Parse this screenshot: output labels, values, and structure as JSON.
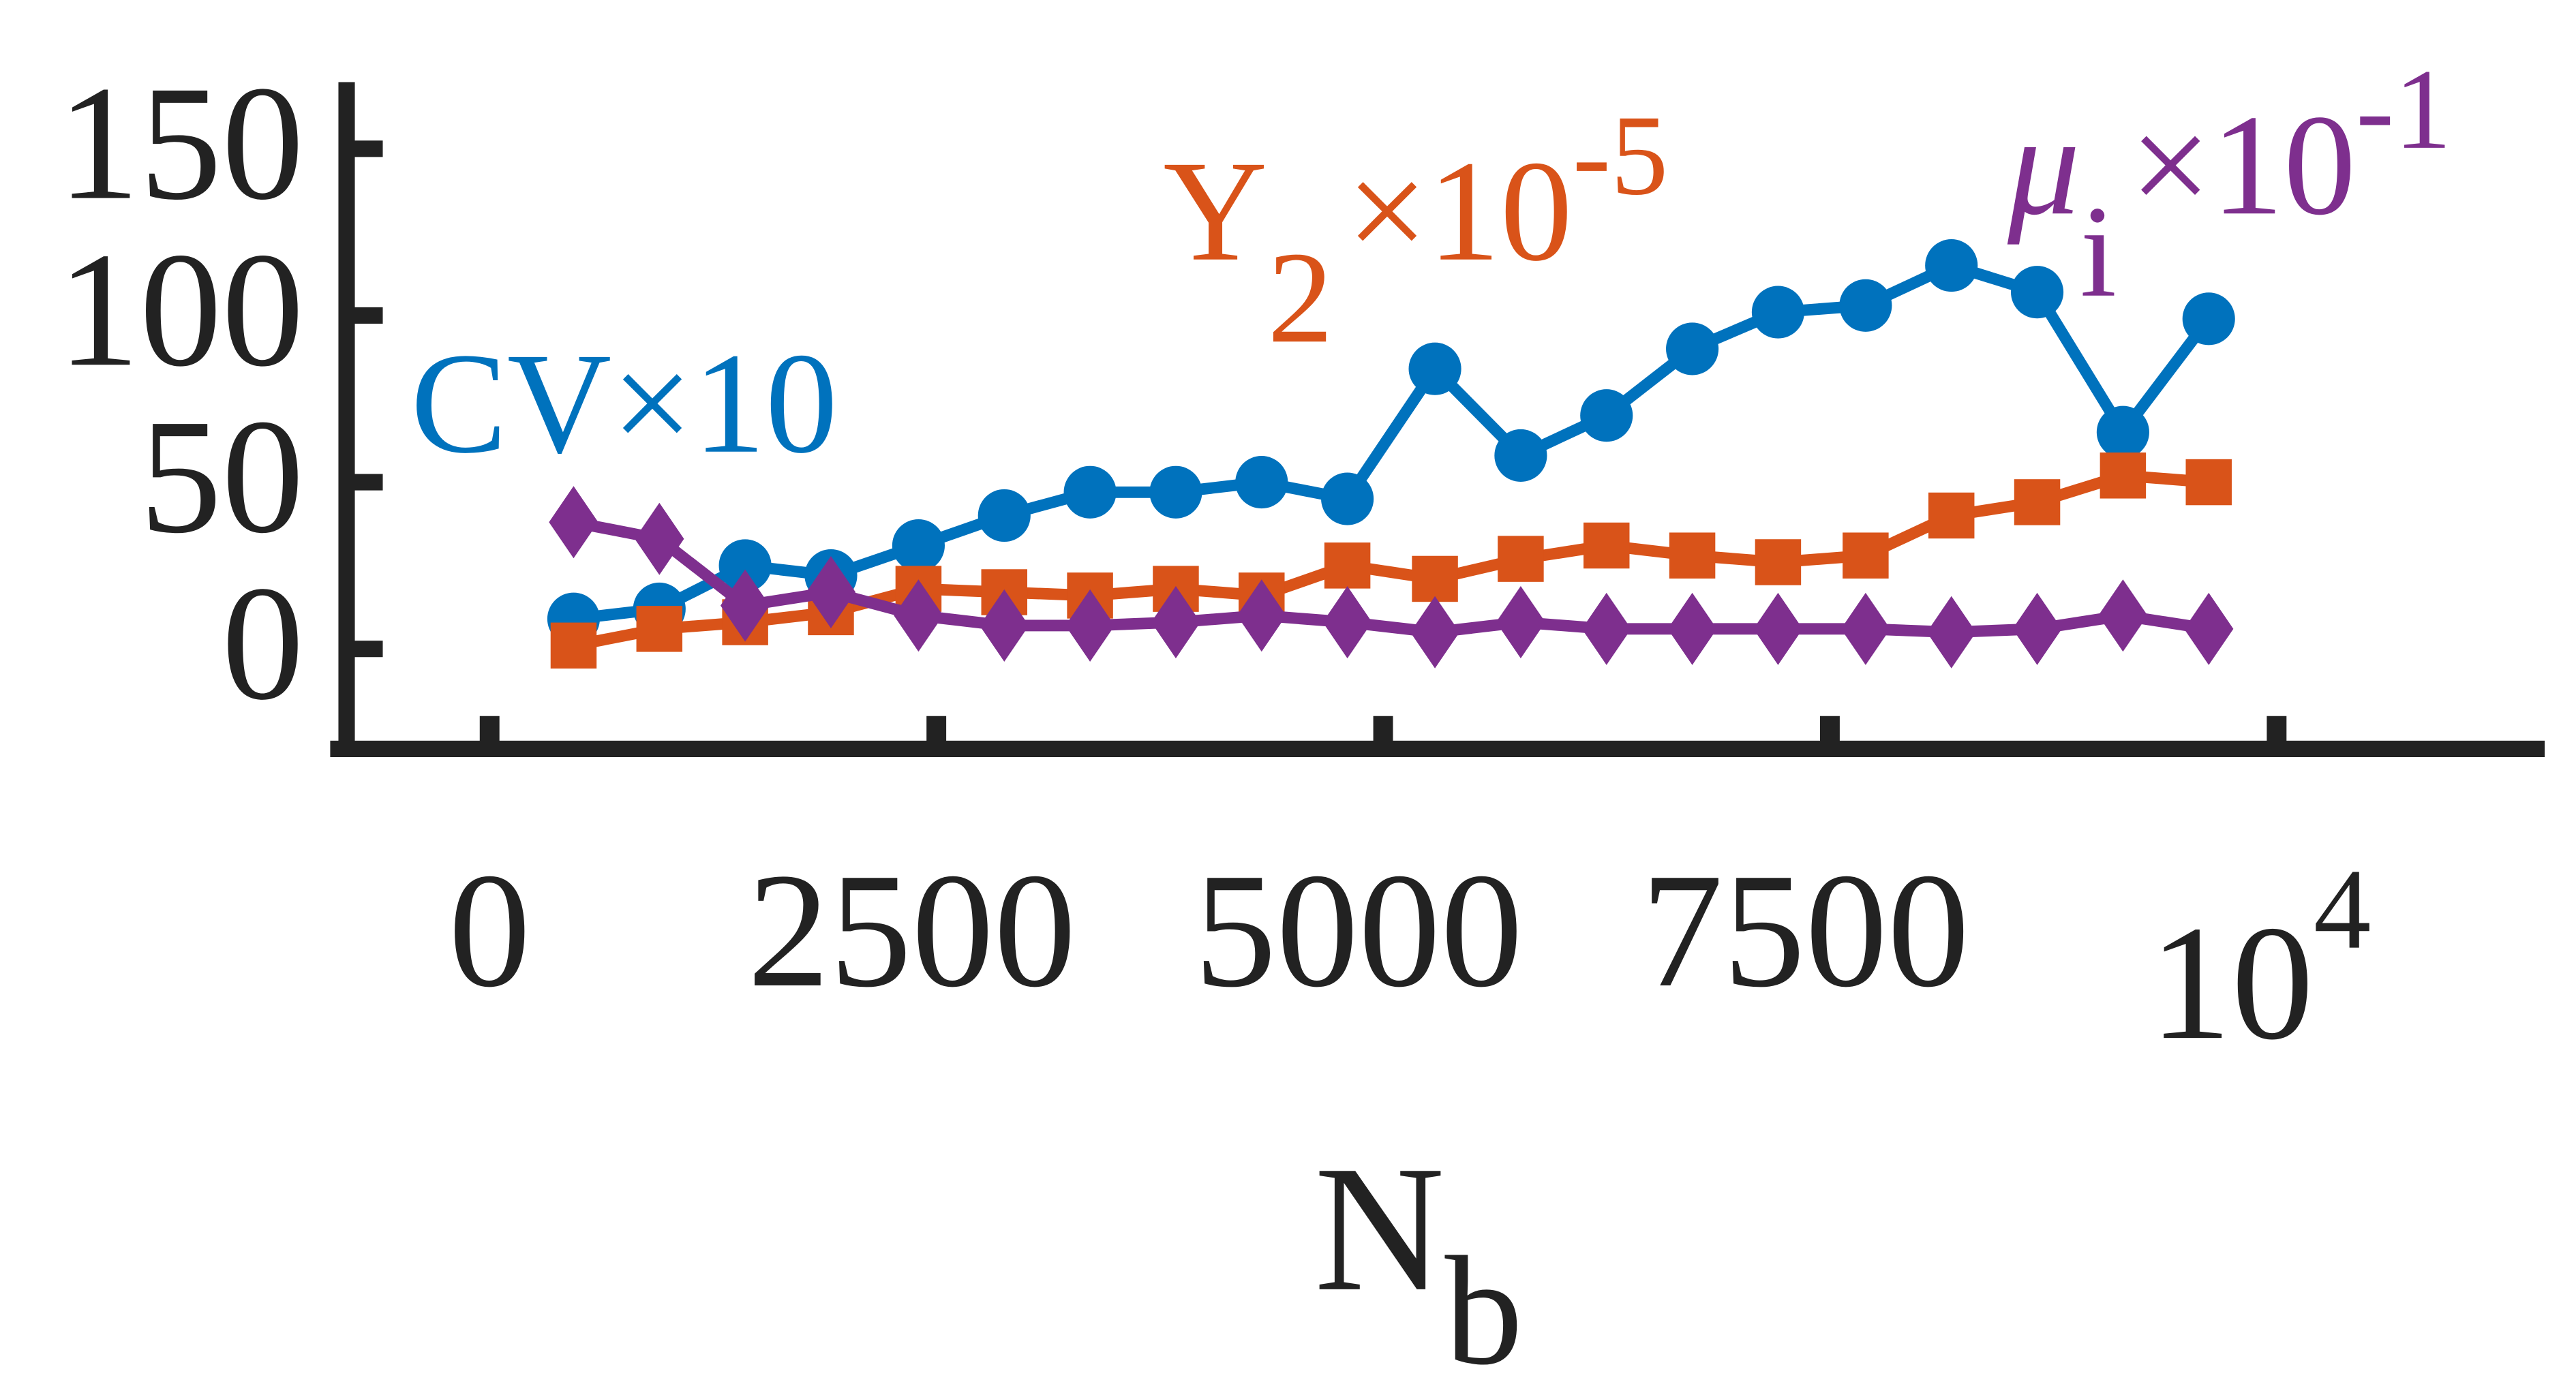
{
  "chart_data": {
    "type": "line",
    "xlabel": {
      "text": "N",
      "sub": "b"
    },
    "x": [
      470,
      950,
      1430,
      1910,
      2400,
      2880,
      3360,
      3840,
      4320,
      4800,
      5290,
      5770,
      6250,
      6730,
      7210,
      7700,
      8180,
      8660,
      9140,
      9620
    ],
    "xlim": [
      -800,
      11500
    ],
    "xticks": [
      0,
      2500,
      5000,
      7500,
      {
        "value": 10000,
        "label": "10",
        "sup": "4"
      }
    ],
    "ylim": [
      -30,
      170
    ],
    "yticks": [
      0,
      50,
      100,
      150
    ],
    "series": [
      {
        "name": {
          "text": "CV×10"
        },
        "color": "#0072BD",
        "marker": "circle",
        "values": [
          9,
          12,
          25,
          22,
          31,
          40,
          47,
          47,
          50,
          45,
          84,
          58,
          70,
          90,
          101,
          103,
          115,
          107,
          65,
          99
        ]
      },
      {
        "name": {
          "text": "Y",
          "sub": "2",
          "suffix": "×10",
          "sup": "-5"
        },
        "color": "#D95319",
        "marker": "square",
        "values": [
          1,
          6,
          8,
          11,
          18,
          17,
          16,
          18,
          16,
          25,
          21,
          27,
          31,
          28,
          26,
          28,
          40,
          44,
          52,
          50
        ]
      },
      {
        "name": {
          "text": "μ",
          "sub": "i",
          "suffix": "×10",
          "sup": "-1"
        },
        "color": "#7E2F8E",
        "marker": "diamond",
        "values": [
          38,
          33,
          13,
          17,
          10,
          7,
          7,
          8,
          10,
          8,
          5,
          8,
          6,
          6,
          6,
          6,
          5,
          6,
          10,
          6
        ]
      }
    ]
  }
}
